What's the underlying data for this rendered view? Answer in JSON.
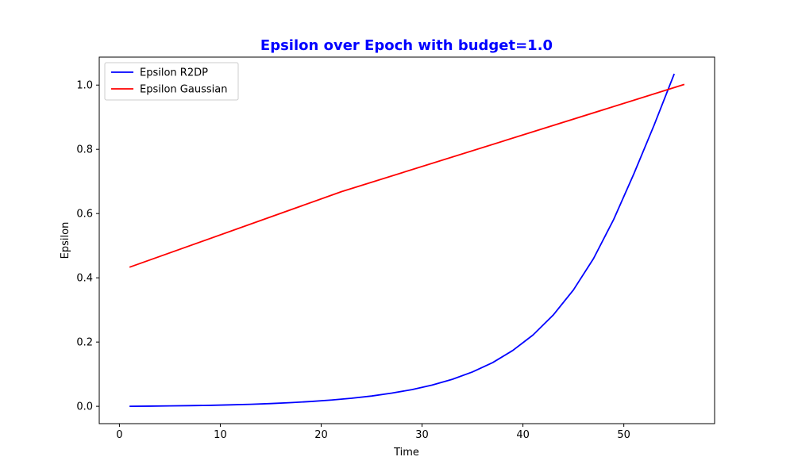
{
  "chart_data": {
    "type": "line",
    "title": "Epsilon over Epoch with budget=1.0",
    "title_color": "#0000ff",
    "xlabel": "Time",
    "ylabel": "Epsilon",
    "xlim": [
      -2,
      59
    ],
    "ylim": [
      -0.054,
      1.087
    ],
    "xticks": [
      0,
      10,
      20,
      30,
      40,
      50
    ],
    "xtick_labels": [
      "0",
      "10",
      "20",
      "30",
      "40",
      "50"
    ],
    "yticks": [
      0.0,
      0.2,
      0.4,
      0.6,
      0.8,
      1.0
    ],
    "ytick_labels": [
      "0.0",
      "0.2",
      "0.4",
      "0.6",
      "0.8",
      "1.0"
    ],
    "grid": false,
    "legend_position": "top-left",
    "series": [
      {
        "name": "Epsilon R2DP",
        "color": "#0000ff",
        "x": [
          1,
          3,
          5,
          7,
          9,
          11,
          13,
          15,
          17,
          19,
          21,
          23,
          25,
          27,
          29,
          31,
          33,
          35,
          37,
          39,
          41,
          43,
          45,
          47,
          49,
          51,
          53,
          55
        ],
        "y": [
          0.0,
          0.0005,
          0.0012,
          0.002,
          0.003,
          0.0045,
          0.0062,
          0.0085,
          0.0115,
          0.015,
          0.0195,
          0.025,
          0.032,
          0.041,
          0.052,
          0.066,
          0.084,
          0.107,
          0.136,
          0.174,
          0.222,
          0.284,
          0.362,
          0.46,
          0.582,
          0.724,
          0.875,
          1.035
        ]
      },
      {
        "name": "Epsilon Gaussian",
        "color": "#ff0000",
        "x": [
          1,
          22,
          56
        ],
        "y": [
          0.433,
          0.668,
          1.002
        ]
      }
    ]
  }
}
